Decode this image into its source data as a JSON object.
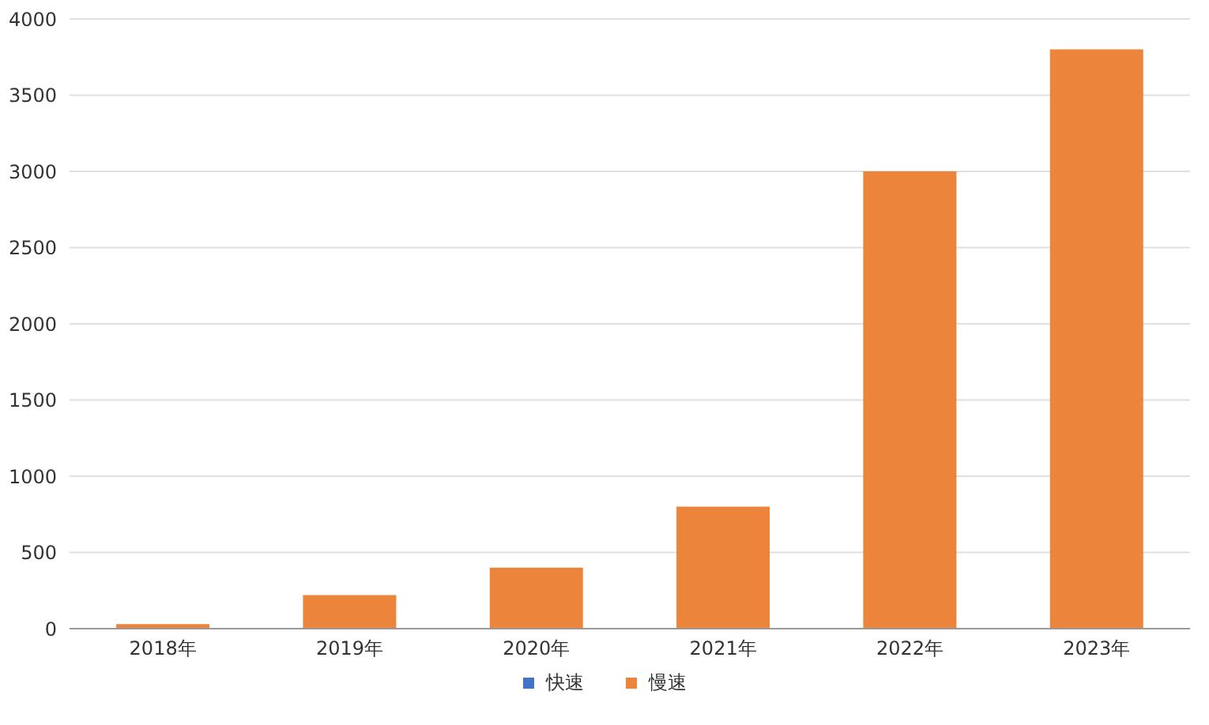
{
  "chart_data": {
    "type": "bar",
    "stacked": true,
    "categories": [
      "2018年",
      "2019年",
      "2020年",
      "2021年",
      "2022年",
      "2023年"
    ],
    "series": [
      {
        "name": "快速",
        "color": "#4472c4",
        "values": [
          null,
          null,
          null,
          null,
          null,
          null
        ]
      },
      {
        "name": "慢速",
        "color": "#ed843c",
        "values": [
          30,
          220,
          400,
          800,
          3000,
          3800
        ]
      }
    ],
    "ylim": [
      0,
      4000
    ],
    "yticks": [
      0,
      500,
      1000,
      1500,
      2000,
      2500,
      3000,
      3500,
      4000
    ],
    "grid": "y",
    "legend": "bottom"
  }
}
